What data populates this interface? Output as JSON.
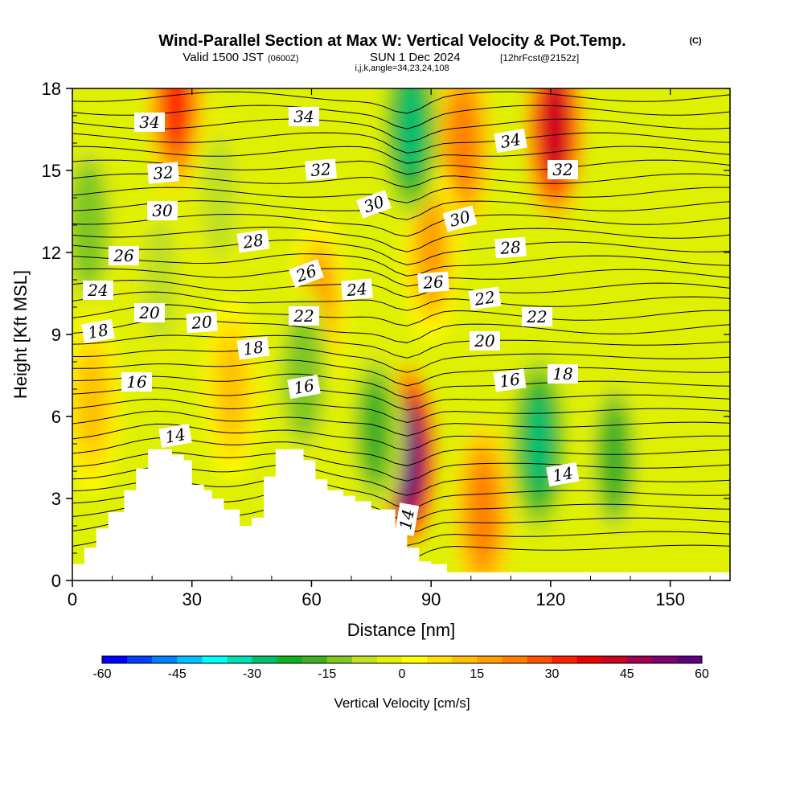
{
  "title": {
    "main": "Wind-Parallel Section at Max W: Vertical Velocity & Pot.Temp.",
    "copyright": "(C)",
    "valid_prefix": "Valid 1500 JST",
    "valid_utc": "(0600Z)",
    "valid_date": "SUN 1 Dec 2024",
    "forecast": "[12hrFcst@2152z]",
    "indices": "i,j,k,angle=34,23,24,108"
  },
  "colorbar": {
    "label": "Vertical Velocity [cm/s]",
    "ticks": [
      "-60",
      "-45",
      "-30",
      "-15",
      "0",
      "15",
      "30",
      "45",
      "60"
    ],
    "colors": [
      "#0000ff",
      "#0040ff",
      "#0080ff",
      "#00c0ff",
      "#00ffff",
      "#00e0b0",
      "#00c070",
      "#10b020",
      "#40b020",
      "#80c820",
      "#c0e020",
      "#e8f000",
      "#ffff00",
      "#ffe000",
      "#ffc000",
      "#ffa000",
      "#ff8000",
      "#ff5000",
      "#ff2000",
      "#ee0000",
      "#cc0020",
      "#a00050",
      "#800070",
      "#600080"
    ]
  },
  "chart_data": {
    "type": "heatmap",
    "xlabel": "Distance [nm]",
    "ylabel": "Height [Kft MSL]",
    "xlim": [
      0,
      165
    ],
    "ylim": [
      0,
      18
    ],
    "x_ticks": [
      "0",
      "30",
      "60",
      "90",
      "120",
      "150"
    ],
    "y_ticks": [
      "0",
      "3",
      "6",
      "9",
      "12",
      "15",
      "18"
    ],
    "field": "Vertical Velocity [cm/s]",
    "value_range": [
      -60,
      60
    ],
    "updrafts": [
      {
        "x": 84,
        "y": 4.5,
        "w": 60
      },
      {
        "x": 121,
        "y": 16.5,
        "w": 40
      },
      {
        "x": 26,
        "y": 17.5,
        "w": 30
      },
      {
        "x": 98,
        "y": 16,
        "w": 20
      },
      {
        "x": 103,
        "y": 2.5,
        "w": 20
      },
      {
        "x": 90,
        "y": 12,
        "w": 15
      },
      {
        "x": 62,
        "y": 10,
        "w": 15
      },
      {
        "x": 5,
        "y": 6.5,
        "w": 12
      },
      {
        "x": 40,
        "y": 7,
        "w": 10
      }
    ],
    "downdrafts": [
      {
        "x": 117,
        "y": 5,
        "w": -30
      },
      {
        "x": 85,
        "y": 16.5,
        "w": -30
      },
      {
        "x": 136,
        "y": 4.5,
        "w": -20
      },
      {
        "x": 76,
        "y": 5.5,
        "w": -20
      },
      {
        "x": 58,
        "y": 7.5,
        "w": -15
      },
      {
        "x": 4,
        "y": 13,
        "w": -15
      },
      {
        "x": 37,
        "y": 14,
        "w": -10
      },
      {
        "x": 22,
        "y": 11,
        "w": -10
      }
    ],
    "theta_contour_labels": [
      "34",
      "34",
      "34",
      "32",
      "32",
      "32",
      "30",
      "30",
      "30",
      "28",
      "28",
      "26",
      "26",
      "26",
      "24",
      "24",
      "22",
      "22",
      "22",
      "20",
      "20",
      "20",
      "18",
      "18",
      "18",
      "16",
      "16",
      "16",
      "14",
      "14",
      "14"
    ],
    "terrain": [
      {
        "x": 0,
        "top": 0.6
      },
      {
        "x": 3,
        "top": 1.2
      },
      {
        "x": 6,
        "top": 1.9
      },
      {
        "x": 9,
        "top": 2.5
      },
      {
        "x": 13,
        "top": 3.3
      },
      {
        "x": 16,
        "top": 4.1
      },
      {
        "x": 19,
        "top": 4.8
      },
      {
        "x": 22,
        "top": 4.8
      },
      {
        "x": 25,
        "top": 4.6
      },
      {
        "x": 28,
        "top": 4.4
      },
      {
        "x": 30,
        "top": 3.5
      },
      {
        "x": 33,
        "top": 3.3
      },
      {
        "x": 35,
        "top": 3.0
      },
      {
        "x": 38,
        "top": 2.6
      },
      {
        "x": 42,
        "top": 2.0
      },
      {
        "x": 45,
        "top": 2.3
      },
      {
        "x": 48,
        "top": 3.8
      },
      {
        "x": 51,
        "top": 4.8
      },
      {
        "x": 55,
        "top": 4.8
      },
      {
        "x": 58,
        "top": 4.4
      },
      {
        "x": 61,
        "top": 3.7
      },
      {
        "x": 64,
        "top": 3.3
      },
      {
        "x": 68,
        "top": 3.1
      },
      {
        "x": 71,
        "top": 2.9
      },
      {
        "x": 75,
        "top": 2.6
      },
      {
        "x": 78,
        "top": 2.6
      },
      {
        "x": 81,
        "top": 1.9
      },
      {
        "x": 84,
        "top": 1.2
      },
      {
        "x": 87,
        "top": 0.7
      },
      {
        "x": 90,
        "top": 0.6
      },
      {
        "x": 94,
        "top": 0.3
      },
      {
        "x": 165,
        "top": 0.3
      }
    ]
  }
}
